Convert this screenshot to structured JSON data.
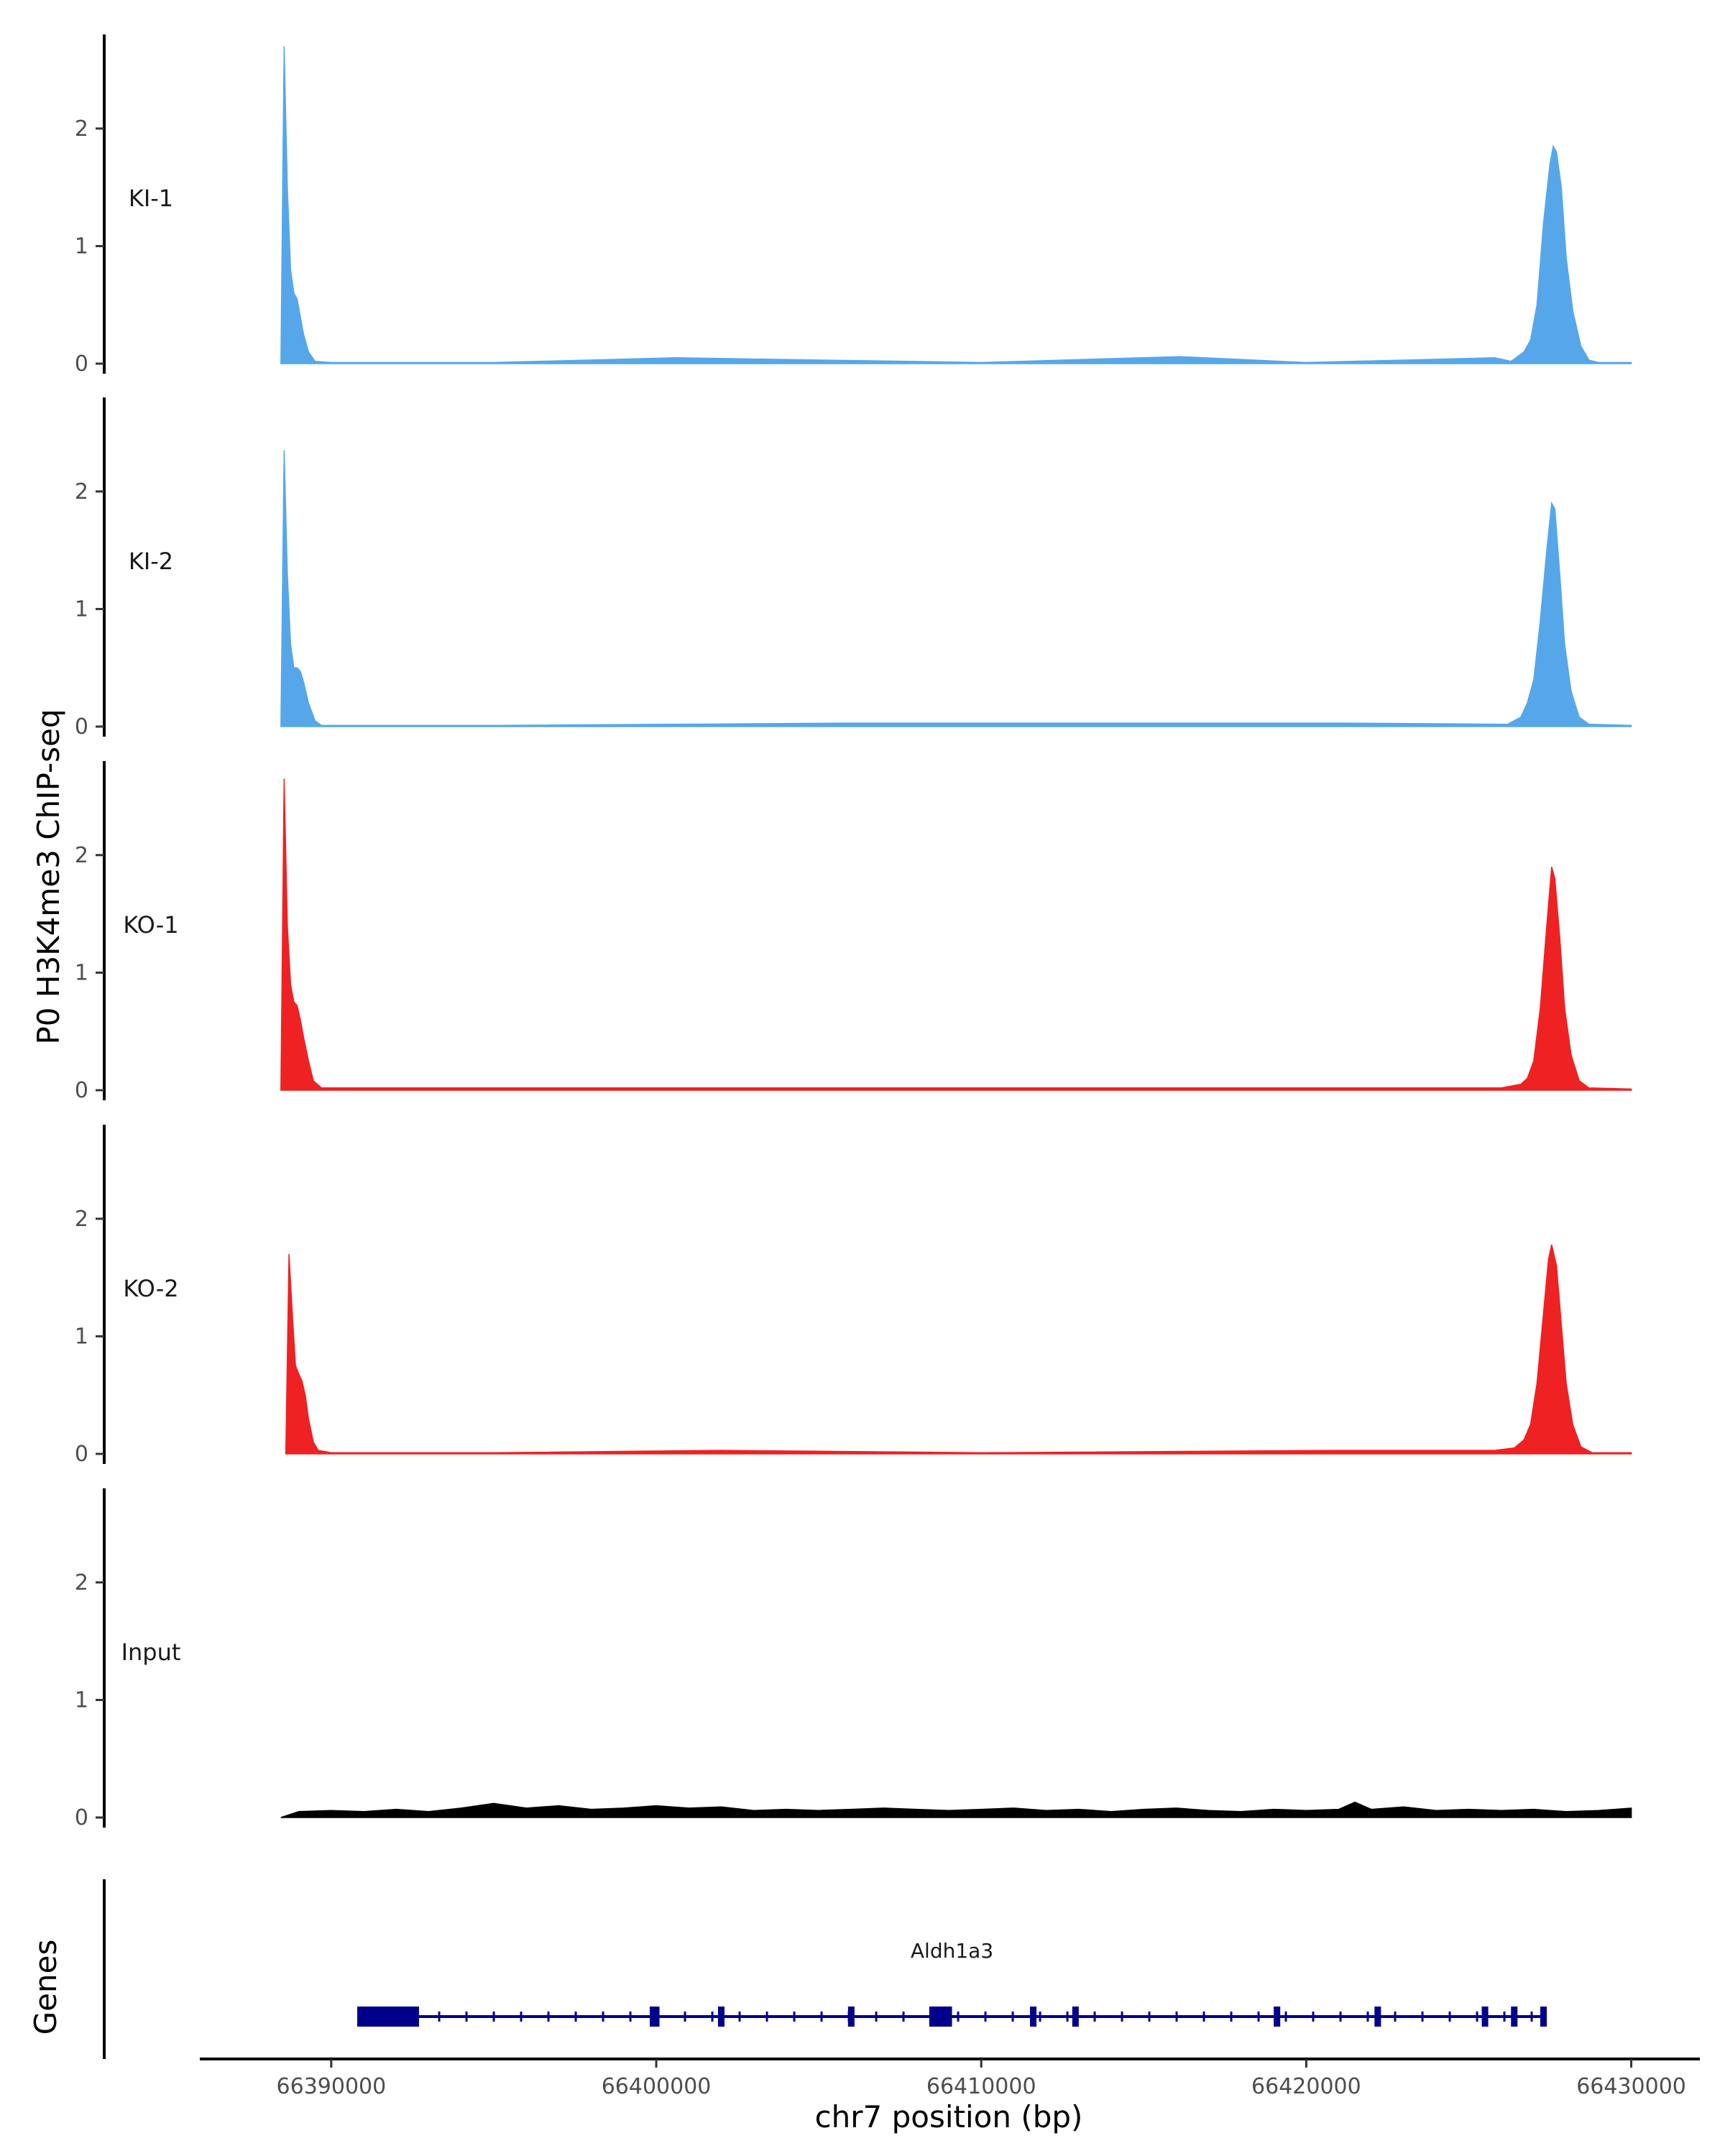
{
  "chart_data": {
    "type": "area",
    "xlabel": "chr7 position (bp)",
    "ylabel": "P0 H3K4me3 ChIP-seq",
    "genes_label": "Genes",
    "xlim": [
      66386000,
      66432000
    ],
    "ylim": [
      0,
      2.8
    ],
    "x_ticks": [
      66390000,
      66400000,
      66410000,
      66420000,
      66430000
    ],
    "x_tick_labels": [
      "66390000",
      "66400000",
      "66410000",
      "66420000",
      "66430000"
    ],
    "y_ticks": [
      0,
      1,
      2
    ],
    "y_tick_labels": [
      "0",
      "1",
      "2"
    ],
    "colors": {
      "KI": "#56a7e9",
      "KO": "#ee2222",
      "Input": "#000000",
      "gene": "#00008b"
    },
    "tracks": [
      {
        "name": "KI-1",
        "color": "#56a7e9",
        "points": [
          [
            66388450,
            0
          ],
          [
            66388550,
            2.7
          ],
          [
            66388650,
            1.5
          ],
          [
            66388750,
            0.8
          ],
          [
            66388850,
            0.6
          ],
          [
            66388950,
            0.55
          ],
          [
            66389050,
            0.4
          ],
          [
            66389150,
            0.25
          ],
          [
            66389300,
            0.1
          ],
          [
            66389500,
            0.02
          ],
          [
            66390000,
            0.01
          ],
          [
            66395000,
            0.01
          ],
          [
            66400600,
            0.05
          ],
          [
            66410000,
            0.01
          ],
          [
            66416100,
            0.06
          ],
          [
            66420000,
            0.01
          ],
          [
            66425800,
            0.05
          ],
          [
            66426300,
            0.02
          ],
          [
            66426500,
            0.06
          ],
          [
            66426700,
            0.1
          ],
          [
            66426900,
            0.2
          ],
          [
            66427100,
            0.5
          ],
          [
            66427300,
            1.2
          ],
          [
            66427500,
            1.7
          ],
          [
            66427600,
            1.85
          ],
          [
            66427700,
            1.8
          ],
          [
            66427850,
            1.5
          ],
          [
            66428000,
            0.9
          ],
          [
            66428200,
            0.45
          ],
          [
            66428450,
            0.15
          ],
          [
            66428700,
            0.03
          ],
          [
            66429000,
            0.01
          ],
          [
            66430000,
            0.01
          ]
        ]
      },
      {
        "name": "KI-2",
        "color": "#56a7e9",
        "points": [
          [
            66388450,
            0
          ],
          [
            66388550,
            2.35
          ],
          [
            66388650,
            1.3
          ],
          [
            66388750,
            0.7
          ],
          [
            66388850,
            0.5
          ],
          [
            66388950,
            0.5
          ],
          [
            66389050,
            0.47
          ],
          [
            66389150,
            0.38
          ],
          [
            66389300,
            0.2
          ],
          [
            66389500,
            0.05
          ],
          [
            66389700,
            0.01
          ],
          [
            66395000,
            0.01
          ],
          [
            66406000,
            0.03
          ],
          [
            66415000,
            0.03
          ],
          [
            66421000,
            0.03
          ],
          [
            66426200,
            0.02
          ],
          [
            66426600,
            0.08
          ],
          [
            66426800,
            0.2
          ],
          [
            66427000,
            0.4
          ],
          [
            66427200,
            0.9
          ],
          [
            66427400,
            1.5
          ],
          [
            66427550,
            1.9
          ],
          [
            66427650,
            1.85
          ],
          [
            66427800,
            1.3
          ],
          [
            66427950,
            0.7
          ],
          [
            66428150,
            0.3
          ],
          [
            66428400,
            0.08
          ],
          [
            66428700,
            0.02
          ],
          [
            66430000,
            0.01
          ]
        ]
      },
      {
        "name": "KO-1",
        "color": "#ee2222",
        "points": [
          [
            66388450,
            0
          ],
          [
            66388550,
            2.65
          ],
          [
            66388650,
            1.4
          ],
          [
            66388750,
            0.9
          ],
          [
            66388850,
            0.75
          ],
          [
            66388950,
            0.72
          ],
          [
            66389050,
            0.6
          ],
          [
            66389150,
            0.45
          ],
          [
            66389300,
            0.25
          ],
          [
            66389450,
            0.08
          ],
          [
            66389700,
            0.02
          ],
          [
            66395000,
            0.02
          ],
          [
            66400000,
            0.02
          ],
          [
            66410000,
            0.02
          ],
          [
            66420000,
            0.02
          ],
          [
            66426000,
            0.02
          ],
          [
            66426600,
            0.05
          ],
          [
            66426800,
            0.1
          ],
          [
            66427000,
            0.25
          ],
          [
            66427200,
            0.7
          ],
          [
            66427400,
            1.4
          ],
          [
            66427550,
            1.9
          ],
          [
            66427650,
            1.8
          ],
          [
            66427800,
            1.3
          ],
          [
            66427950,
            0.7
          ],
          [
            66428150,
            0.3
          ],
          [
            66428400,
            0.08
          ],
          [
            66428700,
            0.02
          ],
          [
            66430000,
            0.01
          ]
        ]
      },
      {
        "name": "KO-2",
        "color": "#ee2222",
        "points": [
          [
            66388600,
            0
          ],
          [
            66388700,
            1.7
          ],
          [
            66388800,
            1.2
          ],
          [
            66388900,
            0.75
          ],
          [
            66389000,
            0.68
          ],
          [
            66389100,
            0.62
          ],
          [
            66389200,
            0.5
          ],
          [
            66389300,
            0.3
          ],
          [
            66389450,
            0.1
          ],
          [
            66389600,
            0.03
          ],
          [
            66390000,
            0.01
          ],
          [
            66395000,
            0.01
          ],
          [
            66402000,
            0.03
          ],
          [
            66410000,
            0.01
          ],
          [
            66421000,
            0.03
          ],
          [
            66425800,
            0.03
          ],
          [
            66426400,
            0.05
          ],
          [
            66426700,
            0.12
          ],
          [
            66426900,
            0.25
          ],
          [
            66427100,
            0.6
          ],
          [
            66427300,
            1.2
          ],
          [
            66427450,
            1.65
          ],
          [
            66427550,
            1.78
          ],
          [
            66427700,
            1.6
          ],
          [
            66427850,
            1.1
          ],
          [
            66428000,
            0.6
          ],
          [
            66428200,
            0.25
          ],
          [
            66428450,
            0.06
          ],
          [
            66428800,
            0.01
          ],
          [
            66430000,
            0.01
          ]
        ]
      },
      {
        "name": "Input",
        "color": "#000000",
        "points": [
          [
            66388450,
            0
          ],
          [
            66389000,
            0.05
          ],
          [
            66390000,
            0.06
          ],
          [
            66391000,
            0.05
          ],
          [
            66392000,
            0.07
          ],
          [
            66393000,
            0.05
          ],
          [
            66394000,
            0.08
          ],
          [
            66395000,
            0.12
          ],
          [
            66396000,
            0.08
          ],
          [
            66397000,
            0.1
          ],
          [
            66398000,
            0.07
          ],
          [
            66399000,
            0.08
          ],
          [
            66400000,
            0.1
          ],
          [
            66401000,
            0.08
          ],
          [
            66402000,
            0.09
          ],
          [
            66403000,
            0.06
          ],
          [
            66404000,
            0.07
          ],
          [
            66405000,
            0.06
          ],
          [
            66406000,
            0.07
          ],
          [
            66407000,
            0.08
          ],
          [
            66408000,
            0.07
          ],
          [
            66409000,
            0.06
          ],
          [
            66410000,
            0.07
          ],
          [
            66411000,
            0.08
          ],
          [
            66412000,
            0.06
          ],
          [
            66413000,
            0.07
          ],
          [
            66414000,
            0.05
          ],
          [
            66415000,
            0.07
          ],
          [
            66416000,
            0.08
          ],
          [
            66417000,
            0.06
          ],
          [
            66418000,
            0.05
          ],
          [
            66419000,
            0.07
          ],
          [
            66420000,
            0.06
          ],
          [
            66421000,
            0.07
          ],
          [
            66421500,
            0.13
          ],
          [
            66422000,
            0.07
          ],
          [
            66423000,
            0.09
          ],
          [
            66424000,
            0.06
          ],
          [
            66425000,
            0.07
          ],
          [
            66426000,
            0.06
          ],
          [
            66427000,
            0.07
          ],
          [
            66428000,
            0.05
          ],
          [
            66429000,
            0.06
          ],
          [
            66430000,
            0.08
          ]
        ]
      }
    ],
    "gene": {
      "name": "Aldh1a3",
      "strand": "-",
      "start": 66390800,
      "end": 66427400,
      "exons": [
        [
          66390800,
          66392700
        ],
        [
          66399800,
          66400100
        ],
        [
          66401900,
          66402100
        ],
        [
          66405900,
          66406100
        ],
        [
          66408400,
          66409100
        ],
        [
          66411500,
          66411700
        ],
        [
          66412800,
          66413000
        ],
        [
          66419000,
          66419200
        ],
        [
          66422100,
          66422300
        ],
        [
          66425400,
          66425600
        ],
        [
          66426300,
          66426500
        ],
        [
          66427200,
          66427400
        ]
      ]
    }
  }
}
